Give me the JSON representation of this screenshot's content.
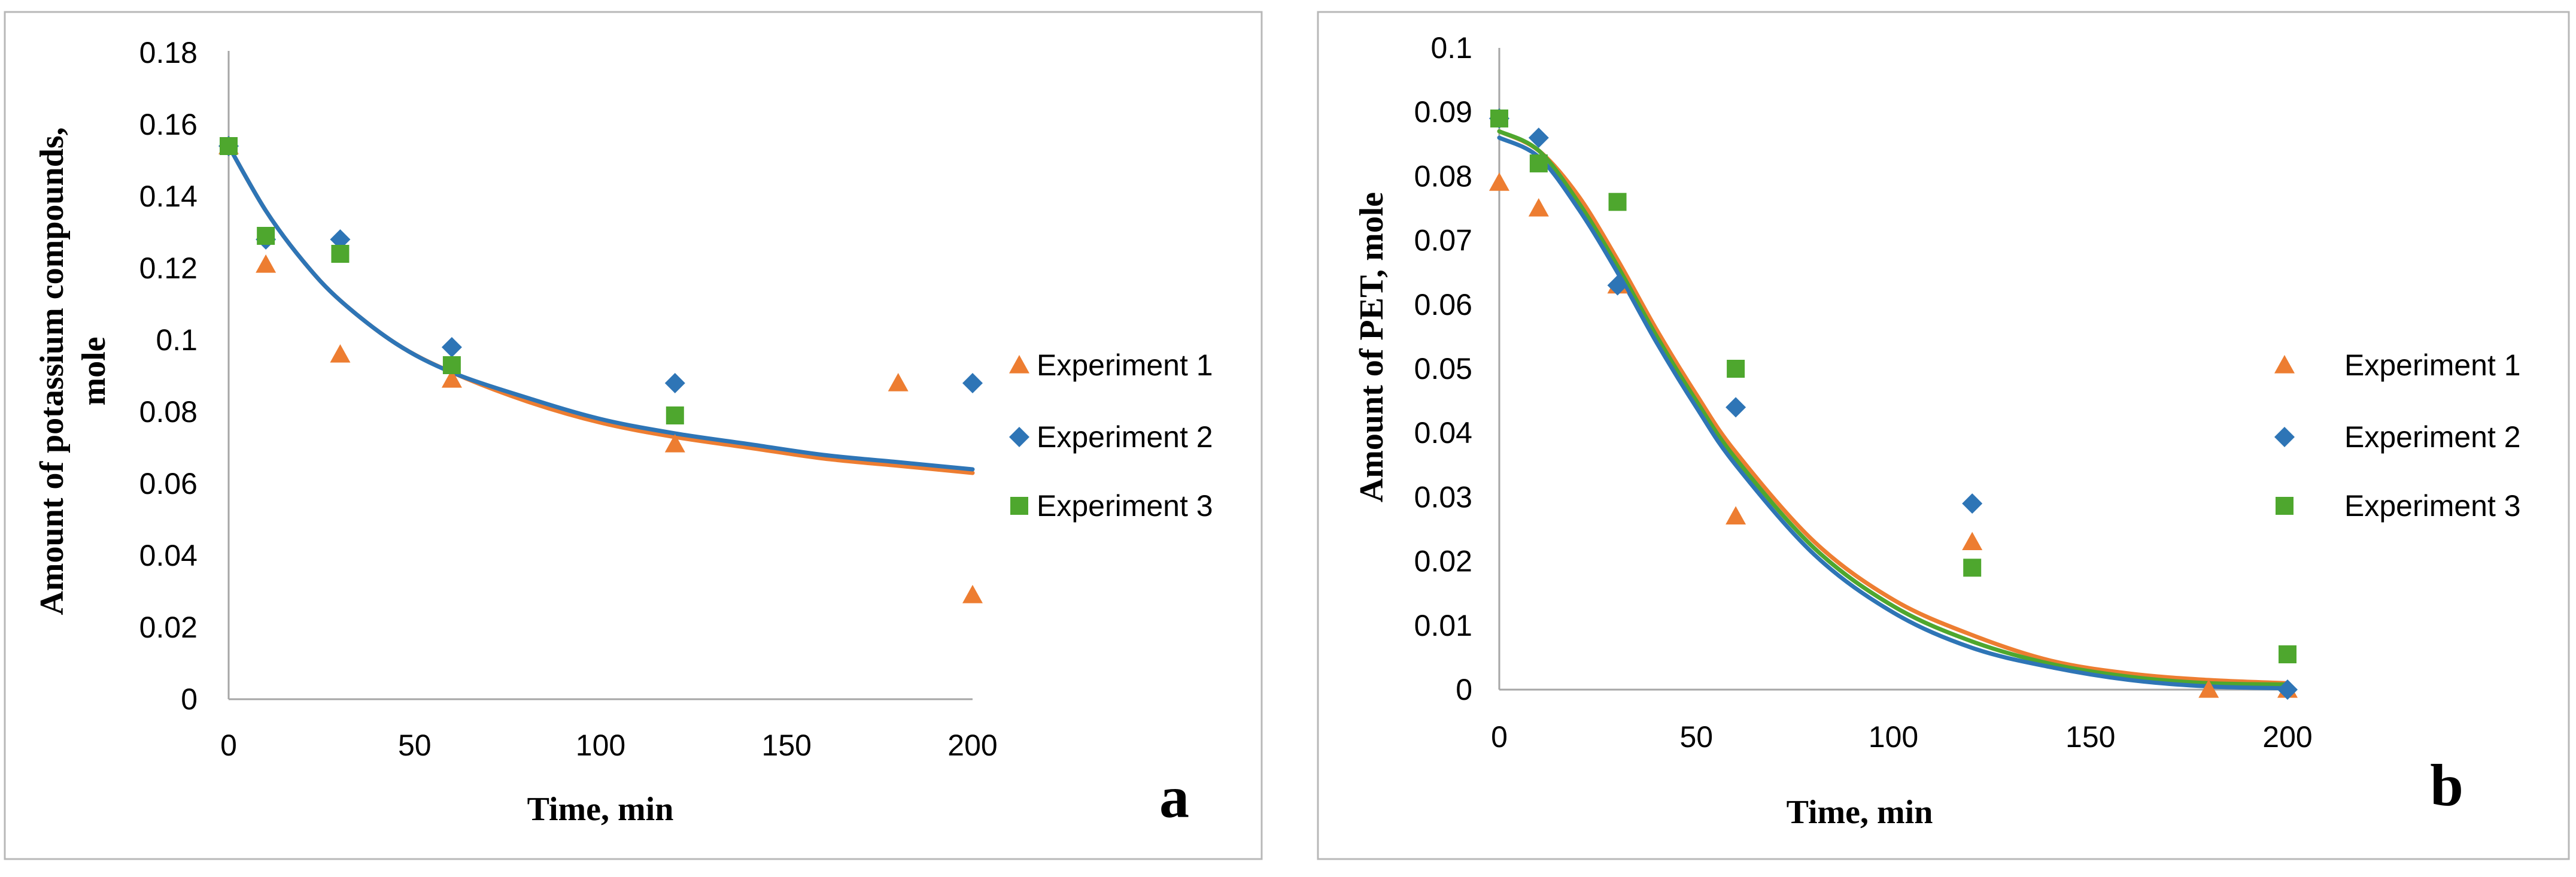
{
  "colors": {
    "experiment_1": "#ED7D31",
    "experiment_2": "#2E75B6",
    "experiment_3": "#4EA72E",
    "axis": "#a6a6a6"
  },
  "chart_data": [
    {
      "type": "scatter",
      "panel_label": "a",
      "title": "",
      "xlabel": "Time, min",
      "ylabel_lines": [
        "Amount of potassium compounds,",
        "mole"
      ],
      "xlim": [
        0,
        200
      ],
      "ylim": [
        0,
        0.18
      ],
      "x_ticks": [
        0,
        50,
        100,
        150,
        200
      ],
      "x_tick_labels": [
        "0",
        "50",
        "100",
        "150",
        "200"
      ],
      "y_ticks": [
        0,
        0.02,
        0.04,
        0.06,
        0.08,
        0.1,
        0.12,
        0.14,
        0.16,
        0.18
      ],
      "y_tick_labels": [
        "0",
        "0.02",
        "0.04",
        "0.06",
        "0.08",
        "0.1",
        "0.12",
        "0.14",
        "0.16",
        "0.18"
      ],
      "legend_position": "right",
      "series": [
        {
          "name": "Experiment 1",
          "marker": "triangle",
          "color_key": "experiment_1",
          "x": [
            0,
            10,
            30,
            60,
            120,
            180,
            200
          ],
          "y": [
            0.154,
            0.121,
            0.096,
            0.089,
            0.071,
            0.088,
            0.029
          ]
        },
        {
          "name": "Experiment 2",
          "marker": "diamond",
          "color_key": "experiment_2",
          "x": [
            0,
            10,
            30,
            60,
            120,
            200
          ],
          "y": [
            0.154,
            0.128,
            0.128,
            0.098,
            0.088,
            0.088
          ]
        },
        {
          "name": "Experiment 3",
          "marker": "square",
          "color_key": "experiment_3",
          "x": [
            0,
            10,
            30,
            60,
            120
          ],
          "y": [
            0.154,
            0.129,
            0.124,
            0.093,
            0.079
          ]
        }
      ],
      "fit_curves": [
        {
          "color_key": "experiment_1",
          "x": [
            0,
            10,
            20,
            30,
            45,
            60,
            80,
            100,
            120,
            140,
            160,
            180,
            200
          ],
          "y": [
            0.154,
            0.136,
            0.122,
            0.111,
            0.099,
            0.091,
            0.083,
            0.077,
            0.073,
            0.07,
            0.067,
            0.065,
            0.063
          ]
        },
        {
          "color_key": "experiment_2",
          "x": [
            0,
            10,
            20,
            30,
            45,
            60,
            80,
            100,
            120,
            140,
            160,
            180,
            200
          ],
          "y": [
            0.154,
            0.136,
            0.122,
            0.111,
            0.099,
            0.091,
            0.084,
            0.078,
            0.074,
            0.071,
            0.068,
            0.066,
            0.064
          ]
        }
      ]
    },
    {
      "type": "scatter",
      "panel_label": "b",
      "title": "",
      "xlabel": "Time, min",
      "ylabel_lines": [
        "Amount of PET, mole"
      ],
      "xlim": [
        0,
        200
      ],
      "ylim": [
        0,
        0.1
      ],
      "x_ticks": [
        0,
        50,
        100,
        150,
        200
      ],
      "x_tick_labels": [
        "0",
        "50",
        "100",
        "150",
        "200"
      ],
      "y_ticks": [
        0,
        0.01,
        0.02,
        0.03,
        0.04,
        0.05,
        0.06,
        0.07,
        0.08,
        0.09,
        0.1
      ],
      "y_tick_labels": [
        "0",
        "0.01",
        "0.02",
        "0.03",
        "0.04",
        "0.05",
        "0.06",
        "0.07",
        "0.08",
        "0.09",
        "0.1"
      ],
      "legend_position": "right",
      "series": [
        {
          "name": "Experiment 1",
          "marker": "triangle",
          "color_key": "experiment_1",
          "x": [
            0,
            10,
            30,
            60,
            120,
            180,
            200
          ],
          "y": [
            0.079,
            0.075,
            0.063,
            0.027,
            0.023,
            0.0,
            0.0
          ]
        },
        {
          "name": "Experiment 2",
          "marker": "diamond",
          "color_key": "experiment_2",
          "x": [
            0,
            10,
            30,
            60,
            120,
            200
          ],
          "y": [
            0.089,
            0.086,
            0.063,
            0.044,
            0.029,
            0.0
          ]
        },
        {
          "name": "Experiment 3",
          "marker": "square",
          "color_key": "experiment_3",
          "x": [
            0,
            10,
            30,
            60,
            120,
            200
          ],
          "y": [
            0.089,
            0.082,
            0.076,
            0.05,
            0.019,
            0.0055
          ]
        }
      ],
      "fit_curves": [
        {
          "color_key": "experiment_1",
          "x": [
            0,
            10,
            20,
            30,
            40,
            50,
            60,
            80,
            100,
            120,
            140,
            160,
            180,
            200
          ],
          "y": [
            0.087,
            0.084,
            0.077,
            0.067,
            0.056,
            0.046,
            0.037,
            0.023,
            0.014,
            0.0085,
            0.0045,
            0.0025,
            0.0015,
            0.001
          ]
        },
        {
          "color_key": "experiment_3",
          "x": [
            0,
            10,
            20,
            30,
            40,
            50,
            60,
            80,
            100,
            120,
            140,
            160,
            180,
            200
          ],
          "y": [
            0.087,
            0.084,
            0.076,
            0.066,
            0.055,
            0.045,
            0.036,
            0.022,
            0.013,
            0.0075,
            0.004,
            0.002,
            0.001,
            0.0008
          ]
        },
        {
          "color_key": "experiment_2",
          "x": [
            0,
            10,
            20,
            30,
            40,
            50,
            60,
            80,
            100,
            120,
            140,
            160,
            180,
            200
          ],
          "y": [
            0.086,
            0.083,
            0.075,
            0.065,
            0.054,
            0.044,
            0.035,
            0.021,
            0.012,
            0.0065,
            0.0035,
            0.0015,
            0.0005,
            0.0002
          ]
        }
      ]
    }
  ]
}
